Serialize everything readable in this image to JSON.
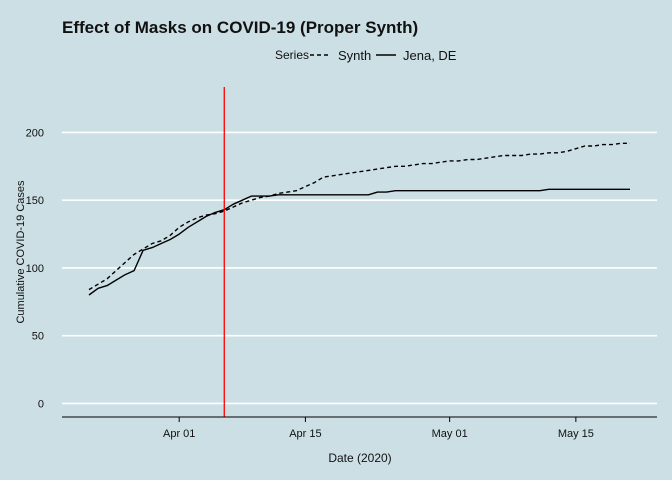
{
  "chart_data": {
    "type": "line",
    "title": "Effect of Masks on COVID-19 (Proper Synth)",
    "xlabel": "Date (2020)",
    "ylabel": "Cumulative COVID-19 Cases",
    "legend_title": "Series",
    "legend_position": "top",
    "x_ticks": [
      {
        "label": "Apr 01",
        "day": 1
      },
      {
        "label": "Apr 15",
        "day": 15
      },
      {
        "label": "May 01",
        "day": 31
      },
      {
        "label": "May 15",
        "day": 45
      }
    ],
    "x_unit": "day index where Apr 01 = 1",
    "xlim": [
      -12,
      54
    ],
    "y_ticks": [
      0,
      50,
      100,
      150,
      200
    ],
    "ylim": [
      -10,
      235
    ],
    "grid": "horizontal major lines",
    "intervention_line": {
      "day": 6,
      "color": "#ff0000"
    },
    "colors": {
      "background": "#ccdfe5",
      "line": "#000000",
      "grid": "#ffffff"
    },
    "series": [
      {
        "name": "Synth",
        "linestyle": "dashed",
        "x": [
          -9,
          -8,
          -7,
          -6,
          -5,
          -4,
          -3,
          -2,
          -1,
          0,
          1,
          2,
          3,
          4,
          5,
          6,
          7,
          8,
          9,
          10,
          11,
          12,
          13,
          14,
          15,
          16,
          17,
          18,
          19,
          20,
          21,
          22,
          23,
          24,
          25,
          26,
          27,
          28,
          29,
          30,
          31,
          32,
          33,
          34,
          35,
          36,
          37,
          38,
          39,
          40,
          41,
          42,
          43,
          44,
          45,
          46,
          47,
          48,
          49,
          50,
          51
        ],
        "y": [
          84,
          88,
          92,
          98,
          104,
          110,
          114,
          118,
          120,
          124,
          130,
          134,
          137,
          139,
          140,
          142,
          145,
          148,
          150,
          152,
          153,
          155,
          156,
          157,
          160,
          163,
          167,
          168,
          169,
          170,
          171,
          172,
          173,
          174,
          175,
          175,
          176,
          177,
          177,
          178,
          179,
          179,
          180,
          180,
          181,
          182,
          183,
          183,
          183,
          184,
          184,
          185,
          185,
          186,
          188,
          190,
          190,
          191,
          191,
          192,
          192
        ]
      },
      {
        "name": "Jena, DE",
        "linestyle": "solid",
        "x": [
          -9,
          -8,
          -7,
          -6,
          -5,
          -4,
          -3,
          -2,
          -1,
          0,
          1,
          2,
          3,
          4,
          5,
          6,
          7,
          8,
          9,
          10,
          11,
          12,
          13,
          14,
          15,
          16,
          17,
          18,
          19,
          20,
          21,
          22,
          23,
          24,
          25,
          26,
          27,
          28,
          29,
          30,
          31,
          32,
          33,
          34,
          35,
          36,
          37,
          38,
          39,
          40,
          41,
          42,
          43,
          44,
          45,
          46,
          47,
          48,
          49,
          50,
          51
        ],
        "y": [
          80,
          85,
          87,
          91,
          95,
          98,
          113,
          115,
          118,
          121,
          125,
          130,
          134,
          138,
          141,
          143,
          147,
          150,
          153,
          153,
          153,
          154,
          154,
          154,
          154,
          154,
          154,
          154,
          154,
          154,
          154,
          154,
          156,
          156,
          157,
          157,
          157,
          157,
          157,
          157,
          157,
          157,
          157,
          157,
          157,
          157,
          157,
          157,
          157,
          157,
          157,
          158,
          158,
          158,
          158,
          158,
          158,
          158,
          158,
          158,
          158
        ]
      }
    ]
  }
}
